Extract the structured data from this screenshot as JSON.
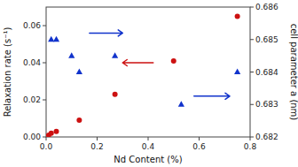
{
  "chart_data": {
    "type": "scatter",
    "xlabel": "Nd Content (%)",
    "ylabel": "Relaxation rate (s⁻¹)",
    "y2label": "cell parameter a (nm)",
    "xlim": [
      0,
      0.8
    ],
    "ylim": [
      0,
      0.07
    ],
    "y2lim": [
      0.682,
      0.686
    ],
    "xticks": [
      {
        "value": 0.0,
        "label": "0.0"
      },
      0.2,
      0.4,
      0.6,
      0.8
    ],
    "yticks": [
      {
        "value": 0.0,
        "label": "0.00"
      },
      {
        "value": 0.02,
        "label": "0.02"
      },
      {
        "value": 0.04,
        "label": "0.04"
      },
      {
        "value": 0.06,
        "label": "0.06"
      }
    ],
    "y2ticks": [
      0.682,
      0.683,
      0.684,
      0.685,
      0.686
    ],
    "series": [
      {
        "axis": "y",
        "color": "#cc1111",
        "marker": "circle",
        "x": [
          0.01,
          0.02,
          0.04,
          0.13,
          0.27,
          0.5,
          0.75
        ],
        "values": [
          0.001,
          0.002,
          0.003,
          0.009,
          0.023,
          0.041,
          0.065
        ]
      },
      {
        "axis": "y2",
        "color": "#1133cc",
        "marker": "triangle",
        "x": [
          0.02,
          0.04,
          0.1,
          0.13,
          0.27,
          0.53,
          0.75
        ],
        "values": [
          0.685,
          0.685,
          0.6845,
          0.684,
          0.6845,
          0.683,
          0.684
        ]
      }
    ],
    "annotations": [
      {
        "type": "arrow",
        "x": 0.42,
        "x_end": 0.3,
        "y": 0.04,
        "color": "#cc1111"
      },
      {
        "type": "arrow",
        "x": 0.17,
        "x_end": 0.3,
        "y": 0.056,
        "color": "#1133cc"
      },
      {
        "type": "arrow",
        "x": 0.58,
        "x_end": 0.72,
        "y": 0.022,
        "color": "#1133cc"
      }
    ]
  }
}
